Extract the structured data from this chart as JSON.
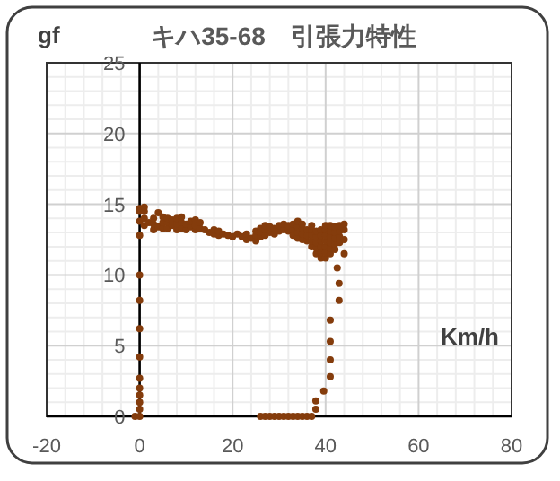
{
  "chart_data": {
    "type": "scatter",
    "title": "キハ35-68　引張力特性",
    "ylabel": "gf",
    "xlabel": "Km/h",
    "xlim": [
      -20,
      80
    ],
    "xticks": [
      -20,
      0,
      20,
      40,
      60,
      80
    ],
    "ylim": [
      0,
      25
    ],
    "yticks": [
      0,
      5,
      10,
      15,
      20,
      25
    ],
    "grid": true,
    "marker": "circle",
    "series": [
      {
        "color": "#843c0c",
        "x": [
          -1,
          0,
          0,
          0,
          0,
          0,
          0,
          0,
          0,
          0,
          0,
          0,
          0,
          0,
          0,
          1,
          1,
          1,
          1,
          2,
          3,
          3,
          3,
          4,
          4,
          5,
          5,
          5,
          6,
          6,
          6,
          7,
          7,
          8,
          8,
          8,
          9,
          9,
          9,
          10,
          10,
          11,
          11,
          12,
          12,
          12,
          13,
          13,
          14,
          15,
          16,
          16,
          17,
          17,
          18,
          19,
          20,
          21,
          22,
          23,
          23,
          24,
          25,
          25,
          25,
          26,
          26,
          26,
          27,
          27,
          27,
          28,
          28,
          29,
          29,
          30,
          30,
          31,
          31,
          32,
          32,
          33,
          33,
          33,
          34,
          34,
          34,
          34,
          35,
          35,
          35,
          35,
          36,
          36,
          36,
          37,
          37,
          37,
          37,
          37,
          38,
          38,
          38,
          38,
          38,
          39,
          39,
          39,
          39,
          39,
          39,
          40,
          40,
          40,
          40,
          40,
          40,
          40,
          41,
          41,
          41,
          41,
          41,
          41,
          42,
          42,
          42,
          42,
          42,
          43,
          43,
          43,
          43,
          44,
          44,
          44,
          44,
          42.5,
          42.9,
          42.9,
          41,
          41,
          41,
          41,
          39.6,
          37.9,
          37.9,
          26,
          27,
          28,
          29,
          30,
          31,
          32,
          33,
          34,
          35,
          36,
          37
        ],
        "values": [
          0,
          0,
          0.5,
          1,
          1.5,
          2,
          2.7,
          4.2,
          6.2,
          8.2,
          10,
          12.8,
          13.8,
          14.7,
          14.5,
          13.5,
          14,
          14.5,
          14.8,
          13.7,
          13.2,
          13.6,
          14,
          13.4,
          14.4,
          13.3,
          13.7,
          14.1,
          13.3,
          13.7,
          14,
          13.5,
          13.9,
          13.2,
          13.6,
          14,
          13.3,
          13.7,
          14.1,
          13.2,
          13.6,
          13.4,
          13.8,
          13.2,
          13.5,
          13.9,
          13.3,
          13.7,
          13.2,
          13,
          12.9,
          13.2,
          12.8,
          13.1,
          12.9,
          12.8,
          12.7,
          12.9,
          12.7,
          12.5,
          12.9,
          12.6,
          12.4,
          12.8,
          13.1,
          12.7,
          13,
          13.3,
          12.8,
          13.2,
          13.5,
          13,
          13.4,
          12.9,
          13.3,
          13.1,
          13.5,
          13.2,
          13.6,
          13.1,
          13.5,
          12.8,
          13.2,
          13.6,
          12.6,
          13,
          13.4,
          13.8,
          12.5,
          12.9,
          13.3,
          13.6,
          12.4,
          12.8,
          13.2,
          12,
          12.4,
          12.8,
          13.2,
          13.5,
          11.5,
          11.9,
          12.3,
          12.7,
          13.1,
          11.2,
          11.6,
          12,
          12.4,
          12.8,
          13.2,
          11.2,
          11.6,
          12,
          12.4,
          12.8,
          13.2,
          13.5,
          11.5,
          11.9,
          12.3,
          12.7,
          13.1,
          13.5,
          11.8,
          12.2,
          12.6,
          13,
          13.4,
          12.3,
          12.7,
          13.1,
          13.5,
          11.5,
          12.5,
          13.2,
          13.6,
          10.5,
          9.4,
          8.2,
          6.8,
          5.3,
          4,
          2.8,
          1.8,
          1.1,
          0.5,
          0,
          0,
          0,
          0,
          0,
          0,
          0,
          0,
          0,
          0,
          0,
          0
        ]
      }
    ]
  }
}
